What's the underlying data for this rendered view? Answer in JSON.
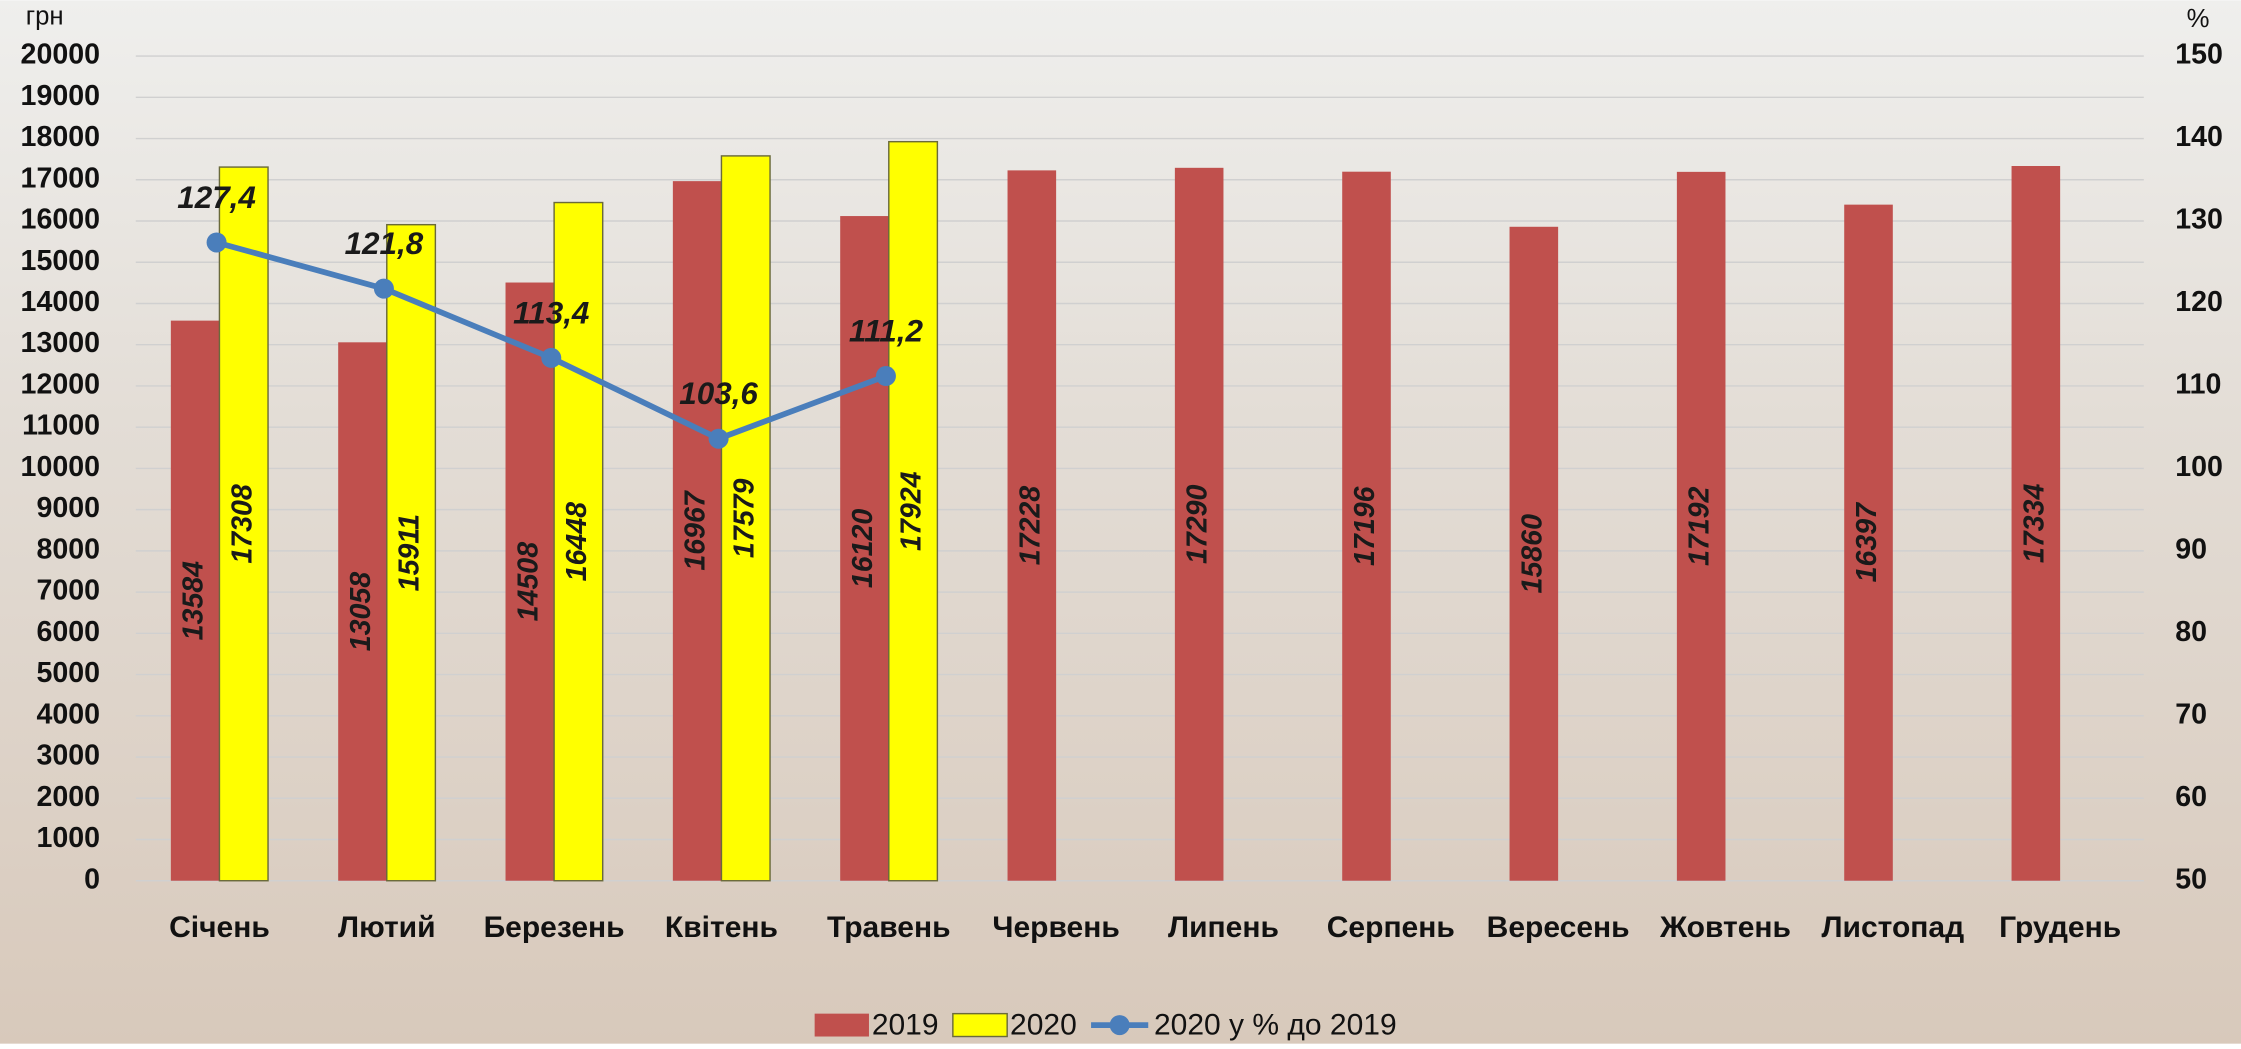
{
  "chart_data": {
    "type": "bar",
    "ylabel": "грн",
    "y2label": "%",
    "categories": [
      "Січень",
      "Лютий",
      "Березень",
      "Квітень",
      "Травень",
      "Червень",
      "Липень",
      "Серпень",
      "Вересень",
      "Жовтень",
      "Листопад",
      "Грудень"
    ],
    "series": [
      {
        "name": "2019",
        "type": "bar",
        "color": "#c0504d",
        "values": [
          13584,
          13058,
          14508,
          16967,
          16120,
          17228,
          17290,
          17196,
          15860,
          17192,
          16397,
          17334
        ]
      },
      {
        "name": "2020",
        "type": "bar",
        "color": "#ffff00",
        "values": [
          17308,
          15911,
          16448,
          17579,
          17924,
          null,
          null,
          null,
          null,
          null,
          null,
          null
        ]
      },
      {
        "name": "2020 у % до 2019",
        "type": "line",
        "axis": "y2",
        "color": "#4a7ebb",
        "values": [
          127.4,
          121.8,
          113.4,
          103.6,
          111.2,
          null,
          null,
          null,
          null,
          null,
          null,
          null
        ],
        "value_labels": [
          "127,4",
          "121,8",
          "113,4",
          "103,6",
          "111,2",
          null,
          null,
          null,
          null,
          null,
          null,
          null
        ]
      }
    ],
    "ylim": [
      0,
      20000
    ],
    "yticks": [
      0,
      1000,
      2000,
      3000,
      4000,
      5000,
      6000,
      7000,
      8000,
      9000,
      10000,
      11000,
      12000,
      13000,
      14000,
      15000,
      16000,
      17000,
      18000,
      19000,
      20000
    ],
    "y2lim": [
      50,
      150
    ],
    "y2ticks": [
      50,
      60,
      70,
      80,
      90,
      100,
      110,
      120,
      130,
      140,
      150
    ],
    "grid": true,
    "legend": "bottom"
  }
}
